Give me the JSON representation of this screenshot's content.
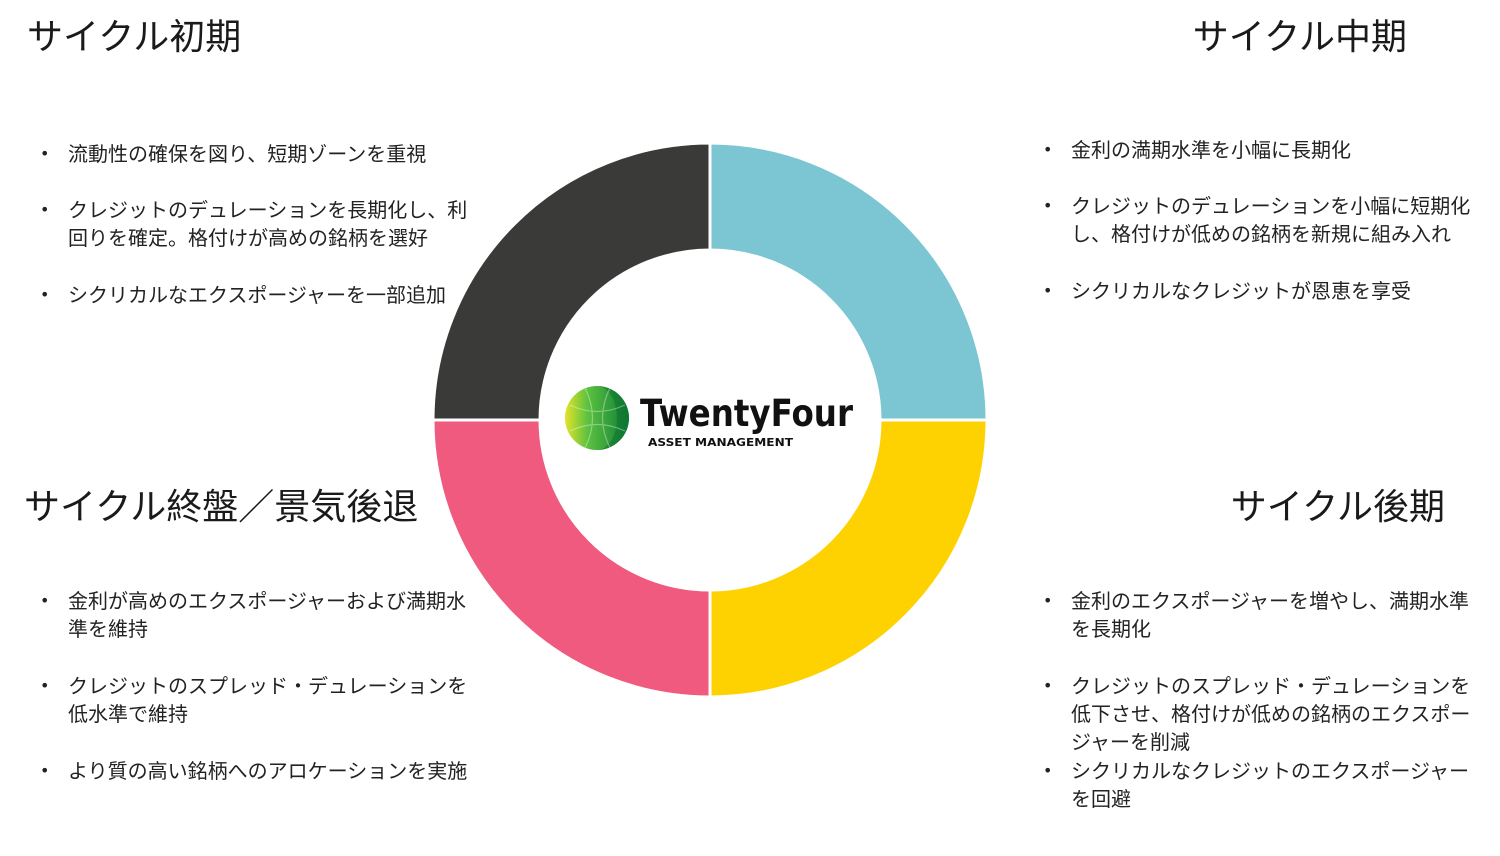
{
  "quadrants": {
    "early": {
      "title": "サイクル初期",
      "color": "#3a3a38",
      "bullets": [
        "流動性の確保を図り、短期ゾーンを重視",
        "クレジットのデュレーションを長期化し、利回りを確定。格付けが高めの銘柄を選好",
        "シクリカルなエクスポージャーを一部追加"
      ]
    },
    "mid": {
      "title": "サイクル中期",
      "color": "#7cc5d3",
      "bullets": [
        "金利の満期水準を小幅に長期化",
        "クレジットのデュレーションを小幅に短期化し、格付けが低めの銘柄を新規に組み入れ",
        "シクリカルなクレジットが恩恵を享受"
      ]
    },
    "late": {
      "title": "サイクル後期",
      "color": "#fdd200",
      "bullets": [
        "金利のエクスポージャーを増やし、満期水準を長期化",
        "クレジットのスプレッド・デュレーションを低下させ、格付けが低めの銘柄のエクスポージャーを削減",
        "シクリカルなクレジットのエクスポージャーを回避"
      ]
    },
    "end": {
      "title": "サイクル終盤／景気後退",
      "color": "#ef5a7e",
      "bullets": [
        "金利が高めのエクスポージャーおよび満期水準を維持",
        "クレジットのスプレッド・デュレーションを低水準で維持",
        "より質の高い銘柄へのアロケーションを実施"
      ]
    }
  },
  "logo": {
    "name": "TwentyFour",
    "subtitle": "ASSET MANAGEMENT"
  }
}
